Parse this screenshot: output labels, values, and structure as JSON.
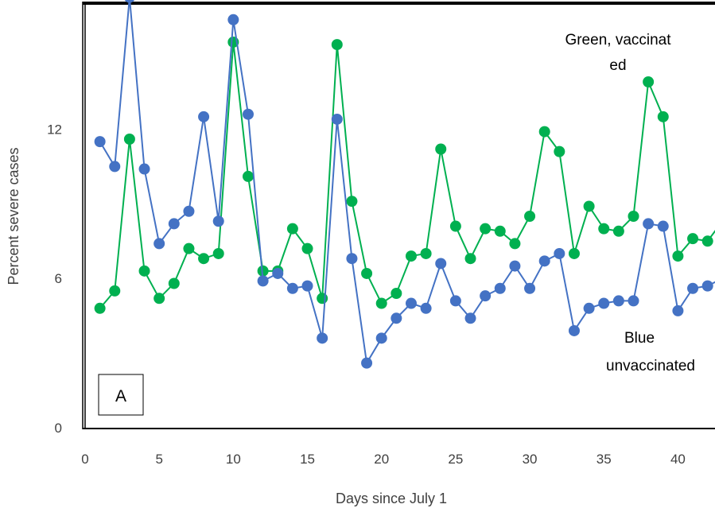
{
  "chart_data": {
    "type": "line",
    "title": "",
    "xlabel": "Days since July 1",
    "ylabel": "Percent severe cases",
    "xlim": [
      0,
      42.5
    ],
    "ylim": [
      0,
      17
    ],
    "x_ticks": [
      0,
      5,
      10,
      15,
      20,
      25,
      30,
      35,
      40
    ],
    "y_ticks": [
      0,
      6,
      12
    ],
    "grid": false,
    "legend": "none",
    "annotations": {
      "green_label_line1": "Green, vaccinat",
      "green_label_line2": "ed",
      "blue_label_line1": "Blue",
      "blue_label_line2": "unvaccinated",
      "panel_label": "A"
    },
    "x": [
      1,
      2,
      3,
      4,
      5,
      6,
      7,
      8,
      9,
      10,
      11,
      12,
      13,
      14,
      15,
      16,
      17,
      18,
      19,
      20,
      21,
      22,
      23,
      24,
      25,
      26,
      27,
      28,
      29,
      30,
      31,
      32,
      33,
      34,
      35,
      36,
      37,
      38,
      39,
      40,
      41,
      42,
      43
    ],
    "series": [
      {
        "color": "#4472C4",
        "values": [
          11.5,
          10.5,
          17.3,
          10.4,
          7.4,
          8.2,
          8.7,
          12.5,
          8.3,
          16.4,
          12.6,
          5.9,
          6.2,
          5.6,
          5.7,
          3.6,
          12.4,
          6.8,
          2.6,
          3.6,
          4.4,
          5.0,
          4.8,
          6.6,
          5.1,
          4.4,
          5.3,
          5.6,
          6.5,
          5.6,
          6.7,
          7.0,
          3.9,
          4.8,
          5.0,
          5.1,
          5.1,
          8.2,
          8.1,
          4.7,
          5.6,
          5.7,
          6.0
        ]
      },
      {
        "color": "#00B050",
        "values": [
          4.8,
          5.5,
          11.6,
          6.3,
          5.2,
          5.8,
          7.2,
          6.8,
          7.0,
          15.5,
          10.1,
          6.3,
          6.3,
          8.0,
          7.2,
          5.2,
          15.4,
          9.1,
          6.2,
          5.0,
          5.4,
          6.9,
          7.0,
          11.2,
          8.1,
          6.8,
          8.0,
          7.9,
          7.4,
          8.5,
          11.9,
          11.1,
          7.0,
          8.9,
          8.0,
          7.9,
          8.5,
          13.9,
          12.5,
          6.9,
          7.6,
          7.5,
          8.3
        ]
      }
    ]
  }
}
